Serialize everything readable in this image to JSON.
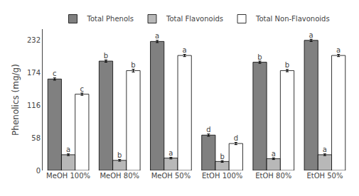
{
  "chart_data": {
    "type": "bar",
    "categories": [
      "MeOH 100%",
      "MeOH 80%",
      "MeOH 50%",
      "EtOH 100%",
      "EtOH 80%",
      "EtOH 50%"
    ],
    "series": [
      {
        "name": "Total Phenols",
        "color": "#808080",
        "values": [
          163,
          195,
          230,
          63,
          193,
          232
        ],
        "errors": [
          2,
          2,
          2,
          2,
          2,
          2
        ],
        "letters": [
          "c",
          "b",
          "a",
          "d",
          "b",
          "a"
        ]
      },
      {
        "name": "Total Flavonoids",
        "color": "#b8b8b8",
        "values": [
          28,
          18,
          22,
          16,
          21,
          28
        ],
        "errors": [
          1.5,
          1.5,
          1.5,
          1.5,
          1.5,
          1.5
        ],
        "letters": [
          "a",
          "b",
          "a",
          "b",
          "a",
          "a"
        ]
      },
      {
        "name": "Total Non-Flavonoids",
        "color": "#ffffff",
        "values": [
          136,
          178,
          205,
          48,
          178,
          205
        ],
        "errors": [
          2,
          2.5,
          2,
          2,
          2,
          2
        ],
        "letters": [
          "c",
          "b",
          "a",
          "d",
          "b",
          "a"
        ]
      }
    ],
    "ylabel": "Phenolics (mg/g)",
    "ylim": [
      0,
      252
    ],
    "yticks": [
      0,
      58,
      116,
      174,
      232
    ],
    "legend": "top",
    "grid": false
  }
}
